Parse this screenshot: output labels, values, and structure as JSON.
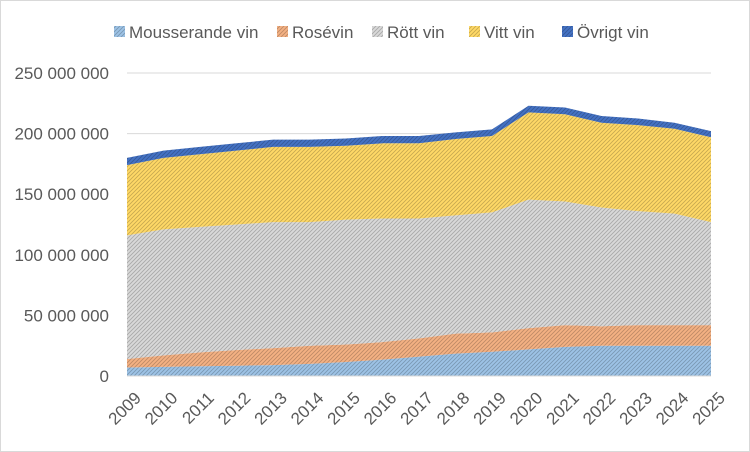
{
  "chart_data": {
    "type": "area",
    "stacked": true,
    "x": [
      "2009",
      "2010",
      "2011",
      "2012",
      "2013",
      "2014",
      "2015",
      "2016",
      "2017",
      "2018",
      "2019",
      "2020",
      "2021",
      "2022",
      "2023",
      "2024",
      "2025"
    ],
    "ylim": [
      0,
      250000000
    ],
    "yticks": [
      0,
      50000000,
      100000000,
      150000000,
      200000000,
      250000000
    ],
    "ytick_labels": [
      "0",
      "50 000 000",
      "100 000 000",
      "150 000 000",
      "200 000 000",
      "250 000 000"
    ],
    "grid": "horizontal",
    "legend_position": "top",
    "series": [
      {
        "name": "Mousserande vin",
        "color": "#9dc3e6",
        "values": [
          7000000,
          7500000,
          8000000,
          8500000,
          9000000,
          10000000,
          11500000,
          13500000,
          16000000,
          18500000,
          20000000,
          22000000,
          24000000,
          25000000,
          25000000,
          25000000,
          25000000
        ]
      },
      {
        "name": "Rosévin",
        "color": "#f4b183",
        "values": [
          7000000,
          9500000,
          11500000,
          13000000,
          14000000,
          15000000,
          14500000,
          14500000,
          15000000,
          16500000,
          16000000,
          17500000,
          18000000,
          16000000,
          17000000,
          17000000,
          17000000
        ]
      },
      {
        "name": "Rött vin",
        "color": "#d9d9d9",
        "values": [
          102000000,
          104000000,
          103500000,
          103500000,
          104000000,
          102000000,
          103000000,
          102000000,
          99000000,
          97500000,
          99000000,
          106000000,
          102000000,
          98000000,
          94000000,
          92000000,
          85000000
        ]
      },
      {
        "name": "Vitt vin",
        "color": "#ffd966",
        "values": [
          58000000,
          59000000,
          60000000,
          61000000,
          62000000,
          62000000,
          61000000,
          62000000,
          62000000,
          63000000,
          63000000,
          72000000,
          72000000,
          70000000,
          71000000,
          70000000,
          70000000
        ]
      },
      {
        "name": "Övrigt vin",
        "color": "#4472c4",
        "values": [
          6000000,
          6000000,
          6000000,
          6000000,
          6000000,
          6000000,
          6000000,
          6000000,
          6000000,
          5500000,
          5500000,
          5500000,
          5500000,
          5500000,
          5500000,
          5000000,
          5000000
        ]
      }
    ]
  }
}
